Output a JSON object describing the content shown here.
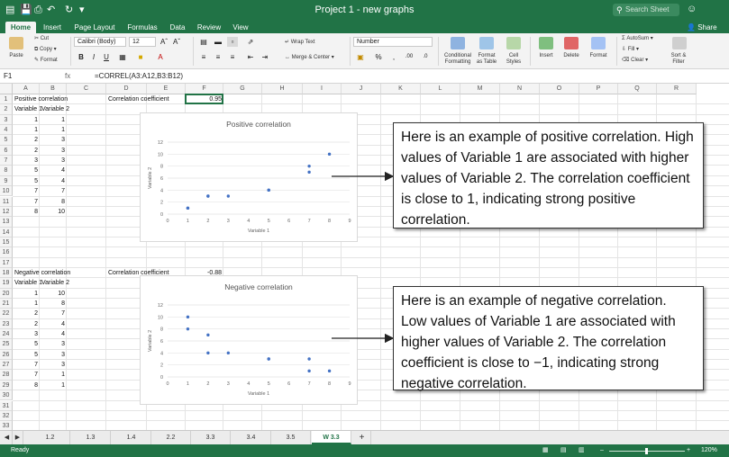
{
  "window": {
    "title": "Project 1 - new graphs",
    "search_placeholder": "Search Sheet"
  },
  "ribbon_tabs": [
    "Home",
    "Insert",
    "Page Layout",
    "Formulas",
    "Data",
    "Review",
    "View"
  ],
  "share_label": "Share",
  "ribbon": {
    "paste": "Paste",
    "cut": "Cut",
    "copy": "Copy",
    "format": "Format",
    "font": "Calibri (Body)",
    "size": "12",
    "wrap_text": "Wrap Text",
    "merge_center": "Merge & Center",
    "number_format": "Number",
    "conditional": [
      "Conditional",
      "Formatting"
    ],
    "format_table": [
      "Format",
      "as Table"
    ],
    "cell_styles": [
      "Cell",
      "Styles"
    ],
    "insert": "Insert",
    "delete": "Delete",
    "format_cells": "Format",
    "autosum": "AutoSum",
    "fill": "Fill",
    "clear": "Clear",
    "sort_filter": [
      "Sort &",
      "Filter"
    ]
  },
  "formula_bar": {
    "cell": "F1",
    "fx": "fx",
    "formula": "=CORREL(A3:A12,B3:B12)"
  },
  "columns": [
    "A",
    "B",
    "C",
    "D",
    "E",
    "F",
    "G",
    "H",
    "I",
    "J",
    "K",
    "L",
    "M",
    "N",
    "O",
    "P",
    "Q",
    "R"
  ],
  "rows": [
    "1",
    "2",
    "3",
    "4",
    "5",
    "6",
    "7",
    "8",
    "9",
    "10",
    "11",
    "12",
    "13",
    "14",
    "15",
    "16",
    "17",
    "18",
    "19",
    "20",
    "21",
    "22",
    "23",
    "24",
    "25",
    "26",
    "27",
    "28",
    "29",
    "30",
    "31",
    "32",
    "33",
    "34"
  ],
  "cells": {
    "a1": "Positive correlation",
    "a2": "Variable 1",
    "b2": "Variable 2",
    "d1": "Correlation coefficient",
    "f1": "0.95",
    "a18": "Negative correlation",
    "a19": "Variable 1",
    "b19": "Variable 2",
    "d18": "Correlation coefficient",
    "f18": "-0.88",
    "pos_a": [
      "1",
      "1",
      "2",
      "2",
      "3",
      "5",
      "5",
      "7",
      "7",
      "8"
    ],
    "pos_b": [
      "1",
      "1",
      "3",
      "3",
      "3",
      "4",
      "4",
      "7",
      "8",
      "10"
    ],
    "neg_a": [
      "1",
      "1",
      "2",
      "2",
      "3",
      "5",
      "5",
      "7",
      "7",
      "8"
    ],
    "neg_b": [
      "10",
      "8",
      "7",
      "4",
      "4",
      "3",
      "3",
      "3",
      "1",
      "1"
    ]
  },
  "chart_data": [
    {
      "type": "scatter",
      "title": "Positive correlation",
      "xlabel": "Variable 1",
      "ylabel": "Variable 2",
      "xlim": [
        0,
        9
      ],
      "ylim": [
        0,
        12
      ],
      "xticks": [
        "0",
        "1",
        "2",
        "3",
        "4",
        "5",
        "6",
        "7",
        "8",
        "9"
      ],
      "yticks": [
        "0",
        "2",
        "4",
        "6",
        "8",
        "10",
        "12"
      ],
      "x": [
        1,
        1,
        2,
        2,
        3,
        5,
        5,
        7,
        7,
        8
      ],
      "y": [
        1,
        1,
        3,
        3,
        3,
        4,
        4,
        7,
        8,
        10
      ],
      "color": "#4472c4"
    },
    {
      "type": "scatter",
      "title": "Negative correlation",
      "xlabel": "Variable 1",
      "ylabel": "Variable 2",
      "xlim": [
        0,
        9
      ],
      "ylim": [
        0,
        12
      ],
      "xticks": [
        "0",
        "1",
        "2",
        "3",
        "4",
        "5",
        "6",
        "7",
        "8",
        "9"
      ],
      "yticks": [
        "0",
        "2",
        "4",
        "6",
        "8",
        "10",
        "12"
      ],
      "x": [
        1,
        1,
        2,
        2,
        3,
        5,
        5,
        7,
        7,
        8
      ],
      "y": [
        10,
        8,
        7,
        4,
        4,
        3,
        3,
        3,
        1,
        1
      ],
      "color": "#4472c4"
    }
  ],
  "callouts": {
    "positive": "Here is an example of positive correlation. High values of Variable 1 are associated with higher values of Variable 2. The correlation coefficient is close to 1, indicating strong positive correlation.",
    "negative": "Here is an example of negative correlation. Low values of Variable 1 are associated with higher values of Variable 2. The correlation coefficient is close to −1, indicating strong negative correlation."
  },
  "sheet_tabs": [
    "1.2",
    "1.3",
    "1.4",
    "2.2",
    "3.3",
    "3.4",
    "3.5",
    "W 3.3"
  ],
  "add_sheet": "+",
  "status": {
    "text": "Ready",
    "zoom": "120%"
  },
  "colors": {
    "accent": "#217346",
    "series": "#4472c4"
  }
}
